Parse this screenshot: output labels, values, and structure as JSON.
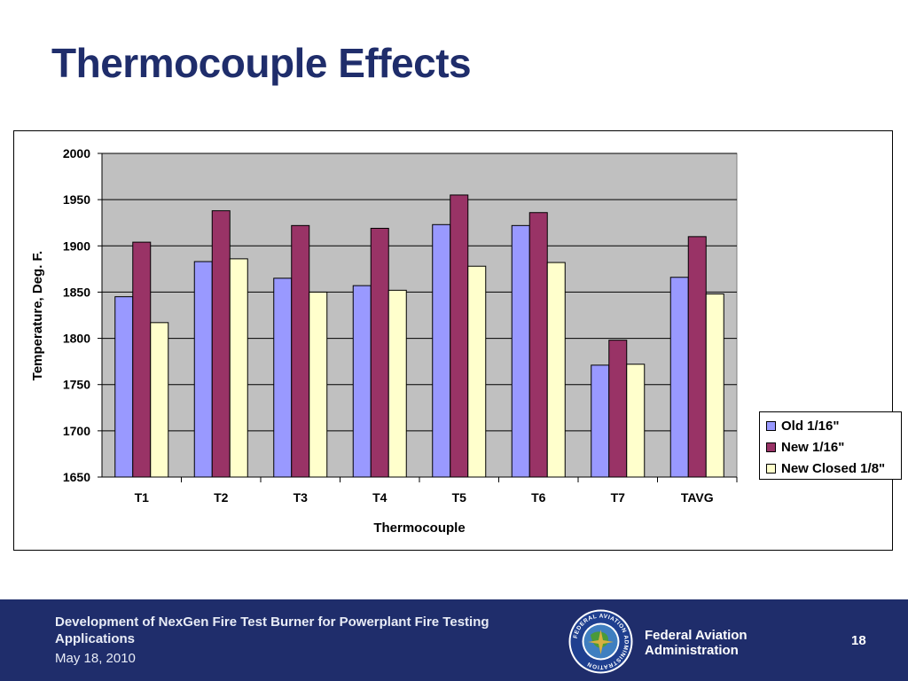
{
  "slide": {
    "title": "Thermocouple Effects"
  },
  "chart_data": {
    "type": "bar",
    "categories": [
      "T1",
      "T2",
      "T3",
      "T4",
      "T5",
      "T6",
      "T7",
      "TAVG"
    ],
    "series": [
      {
        "name": "Old 1/16\"",
        "color": "#9999ff",
        "values": [
          1845,
          1883,
          1865,
          1857,
          1923,
          1922,
          1771,
          1866
        ]
      },
      {
        "name": "New 1/16\"",
        "color": "#993366",
        "values": [
          1904,
          1938,
          1922,
          1919,
          1955,
          1936,
          1798,
          1910
        ]
      },
      {
        "name": "New Closed 1/8\"",
        "color": "#ffffcc",
        "values": [
          1817,
          1886,
          1850,
          1852,
          1878,
          1882,
          1772,
          1848
        ]
      }
    ],
    "xlabel": "Thermocouple",
    "ylabel": "Temperature, Deg. F.",
    "ylim": [
      1650,
      2000
    ],
    "yticks": [
      "2000",
      "1950",
      "1900",
      "1850",
      "1800",
      "1750",
      "1700",
      "1650"
    ],
    "grid": true,
    "plot_background": "#c0c0c0",
    "legend_position": "right"
  },
  "footer": {
    "title": "Development of NexGen Fire Test Burner for Powerplant Fire Testing Applications",
    "date": "May 18, 2010",
    "org_line1": "Federal Aviation",
    "org_line2": "Administration",
    "page_number": "18",
    "seal_text": "FEDERAL AVIATION ADMINISTRATION",
    "background": "#1f2d6b"
  }
}
